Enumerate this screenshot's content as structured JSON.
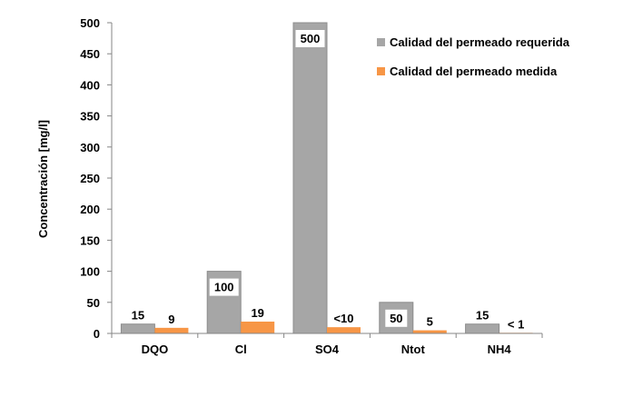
{
  "chart_data": {
    "type": "bar",
    "title": "",
    "xlabel": "",
    "ylabel": "Concentración  [mg/l]",
    "ylim": [
      0,
      500
    ],
    "yticks": [
      0,
      50,
      100,
      150,
      200,
      250,
      300,
      350,
      400,
      450,
      500
    ],
    "ytick_labels": [
      "0",
      "50",
      "100",
      "150",
      "200",
      "250",
      "300",
      "350",
      "400",
      "450",
      "500"
    ],
    "categories": [
      "DQO",
      "Cl",
      "SO4",
      "Ntot",
      "NH4"
    ],
    "series": [
      {
        "name": "Calidad del permeado requerida",
        "color": "#a6a6a6",
        "values": [
          15,
          100,
          500,
          50,
          15
        ],
        "labels": [
          "15",
          "100",
          "500",
          "50",
          "15"
        ],
        "label_boxed": [
          false,
          true,
          true,
          true,
          false
        ]
      },
      {
        "name": "Calidad del permeado medida",
        "color": "#f79646",
        "values": [
          9,
          19,
          10,
          5,
          1
        ],
        "labels": [
          "9",
          "19",
          "<10",
          "5",
          "< 1"
        ],
        "label_boxed": [
          false,
          false,
          false,
          false,
          false
        ]
      }
    ],
    "grid": false,
    "legend_position": "top-right"
  }
}
